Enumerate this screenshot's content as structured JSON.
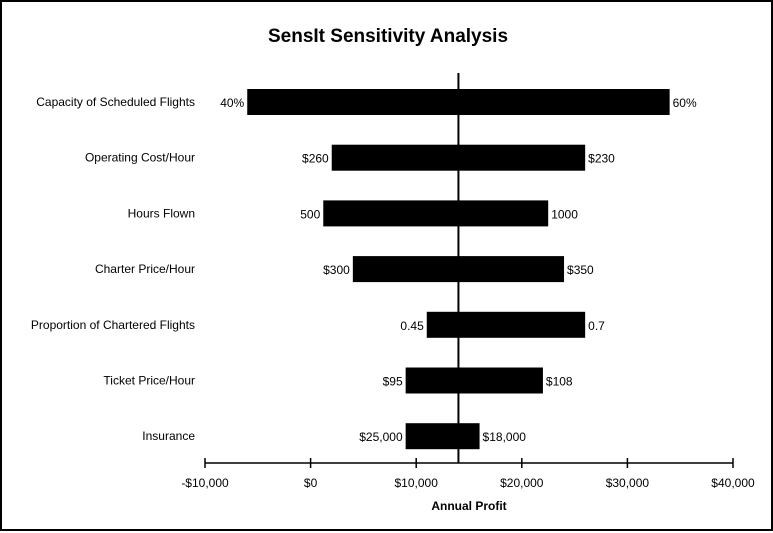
{
  "chart_data": {
    "type": "bar",
    "orientation": "horizontal",
    "title": "SensIt Sensitivity Analysis",
    "xlabel": "Annual Profit",
    "ylabel": "",
    "xlim": [
      -10000,
      40000
    ],
    "xticks": [
      -10000,
      0,
      10000,
      20000,
      30000,
      40000
    ],
    "xtick_labels": [
      "-$10,000",
      "$0",
      "$10,000",
      "$20,000",
      "$30,000",
      "$40,000"
    ],
    "base_value": 14000,
    "bar_color": "#000000",
    "grid": false,
    "legend": "none",
    "bars": [
      {
        "category": "Capacity of Scheduled Flights",
        "low": -6000,
        "high": 34000,
        "low_label": "40%",
        "high_label": "60%"
      },
      {
        "category": "Operating Cost/Hour",
        "low": 2000,
        "high": 26000,
        "low_label": "$260",
        "high_label": "$230"
      },
      {
        "category": "Hours Flown",
        "low": 1200,
        "high": 22500,
        "low_label": "500",
        "high_label": "1000"
      },
      {
        "category": "Charter Price/Hour",
        "low": 4000,
        "high": 24000,
        "low_label": "$300",
        "high_label": "$350"
      },
      {
        "category": "Proportion of Chartered Flights",
        "low": 11000,
        "high": 26000,
        "low_label": "0.45",
        "high_label": "0.7"
      },
      {
        "category": "Ticket Price/Hour",
        "low": 9000,
        "high": 22000,
        "low_label": "$95",
        "high_label": "$108"
      },
      {
        "category": "Insurance",
        "low": 9000,
        "high": 16000,
        "low_label": "$25,000",
        "high_label": "$18,000"
      }
    ]
  }
}
